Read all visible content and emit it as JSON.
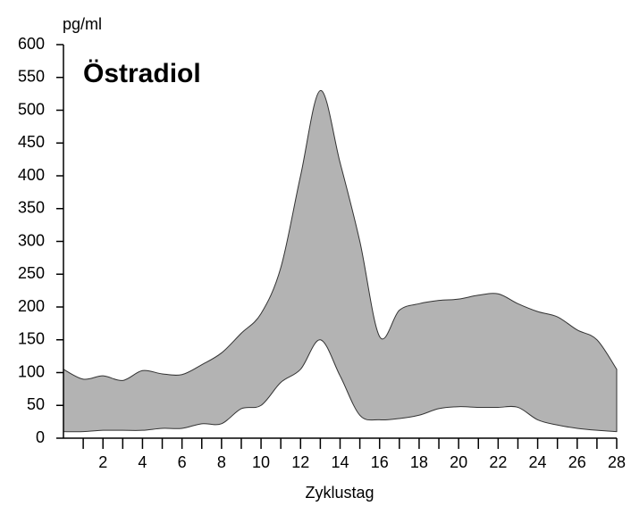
{
  "chart_data": {
    "type": "range-area",
    "title": "Östradiol",
    "ylabel": "pg/ml",
    "xlabel": "Zyklustag",
    "x": [
      0,
      1,
      2,
      3,
      4,
      5,
      6,
      7,
      8,
      9,
      10,
      11,
      12,
      13,
      14,
      15,
      16,
      17,
      18,
      19,
      20,
      21,
      22,
      23,
      24,
      25,
      26,
      27,
      28
    ],
    "series": [
      {
        "color": "#b3b3b3",
        "values": [
          105,
          90,
          95,
          88,
          103,
          98,
          97,
          112,
          130,
          160,
          190,
          260,
          400,
          530,
          420,
          300,
          155,
          195,
          205,
          210,
          212,
          218,
          220,
          205,
          193,
          185,
          165,
          150,
          105
        ]
      },
      {
        "color": "#b3b3b3",
        "values": [
          10,
          10,
          12,
          12,
          12,
          15,
          15,
          22,
          22,
          45,
          50,
          85,
          105,
          150,
          95,
          35,
          28,
          30,
          35,
          45,
          48,
          47,
          47,
          47,
          28,
          20,
          15,
          12,
          10
        ]
      }
    ],
    "xlim": [
      0,
      28
    ],
    "xticks": [
      2,
      4,
      6,
      8,
      10,
      12,
      14,
      16,
      18,
      20,
      22,
      24,
      26,
      28
    ],
    "xminorticks": [
      1,
      3,
      5,
      7,
      9,
      11,
      13,
      15,
      17,
      19,
      21,
      23,
      25,
      27
    ],
    "ylim": [
      0,
      600
    ],
    "yticks": [
      0,
      50,
      100,
      150,
      200,
      250,
      300,
      350,
      400,
      450,
      500,
      550,
      600
    ]
  }
}
